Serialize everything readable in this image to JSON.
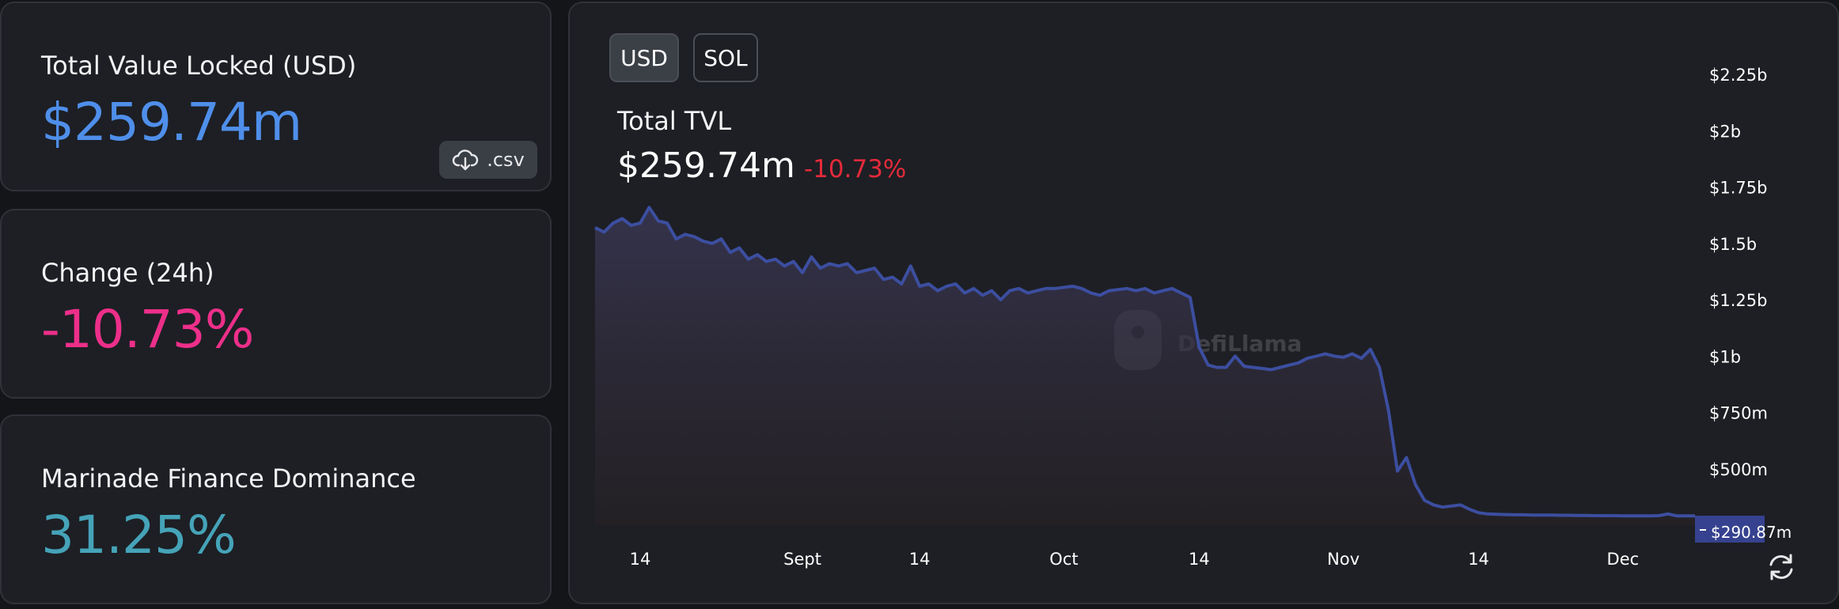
{
  "cards": {
    "tvl": {
      "label": "Total Value Locked (USD)",
      "value": "$259.74m",
      "value_color": "#4f8fea",
      "csv_label": ".csv"
    },
    "change": {
      "label": "Change (24h)",
      "value": "-10.73%",
      "value_color": "#ed2f8a"
    },
    "dominance": {
      "label": "Marinade Finance Dominance",
      "value": "31.25%",
      "value_color": "#45a3b8"
    }
  },
  "toolbar": {
    "usd_label": "USD",
    "sol_label": "SOL",
    "active": "USD"
  },
  "chart_header": {
    "title": "Total TVL",
    "value": "$259.74m",
    "change": "-10.73%"
  },
  "watermark": "DefiLlama",
  "colors": {
    "line": "#3c4ea0",
    "tooltip": "#36428f",
    "accent_red": "#e42a3a"
  },
  "chart_data": {
    "type": "area",
    "y_tick_labels": [
      "$2.25b",
      "$2b",
      "$1.75b",
      "$1.5b",
      "$1.25b",
      "$1b",
      "$750m",
      "$500m"
    ],
    "y_ticks": [
      2250,
      2000,
      1750,
      1500,
      1250,
      1000,
      750,
      500
    ],
    "x_tick_labels": [
      "14",
      "Sept",
      "14",
      "Oct",
      "14",
      "Nov",
      "14",
      "Dec"
    ],
    "x_ticks": [
      5,
      23,
      36,
      52,
      67,
      83,
      98,
      114
    ],
    "ylim": [
      250,
      2250
    ],
    "xlim": [
      0,
      122
    ],
    "y_units": "millions USD",
    "current_marker": {
      "label": "$290.87m",
      "value": 290.87
    },
    "grid": false,
    "series": [
      {
        "values": [
          1570,
          1550,
          1590,
          1610,
          1580,
          1590,
          1660,
          1600,
          1590,
          1520,
          1540,
          1530,
          1510,
          1500,
          1520,
          1460,
          1480,
          1430,
          1450,
          1420,
          1430,
          1400,
          1420,
          1370,
          1440,
          1390,
          1410,
          1400,
          1410,
          1370,
          1380,
          1390,
          1340,
          1350,
          1320,
          1400,
          1310,
          1320,
          1290,
          1310,
          1320,
          1280,
          1300,
          1270,
          1290,
          1250,
          1290,
          1300,
          1280,
          1290,
          1300,
          1300,
          1305,
          1310,
          1300,
          1280,
          1270,
          1290,
          1295,
          1300,
          1290,
          1300,
          1280,
          1290,
          1300,
          1280,
          1260,
          1040,
          960,
          950,
          950,
          1000,
          955,
          950,
          945,
          940,
          950,
          960,
          970,
          990,
          1000,
          1010,
          1000,
          995,
          1010,
          990,
          1030,
          950,
          760,
          490,
          550,
          430,
          360,
          340,
          330,
          335,
          340,
          320,
          305,
          300,
          298,
          297,
          296,
          296,
          295,
          295,
          295,
          294,
          294,
          293,
          293,
          292,
          292,
          292,
          291,
          291,
          291,
          291,
          292,
          300,
          291,
          291,
          291
        ]
      }
    ]
  }
}
